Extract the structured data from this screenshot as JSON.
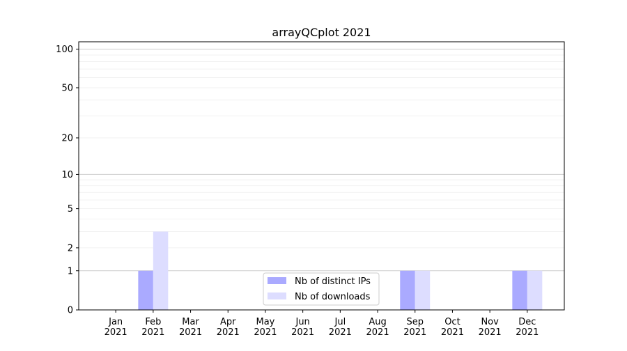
{
  "chart_data": {
    "type": "bar",
    "title": "arrayQCplot 2021",
    "xlabel": "",
    "ylabel": "",
    "y_scale": "log(1+y)",
    "ylim": [
      0,
      114
    ],
    "yticks": [
      0,
      1,
      2,
      5,
      10,
      20,
      50,
      100
    ],
    "ytick_labels": [
      "0",
      "1",
      "2",
      "5",
      "10",
      "20",
      "50",
      "100"
    ],
    "grid": true,
    "legend_position": "bottom-center",
    "categories": [
      "Jan\n2021",
      "Feb\n2021",
      "Mar\n2021",
      "Apr\n2021",
      "May\n2021",
      "Jun\n2021",
      "Jul\n2021",
      "Aug\n2021",
      "Sep\n2021",
      "Oct\n2021",
      "Nov\n2021",
      "Dec\n2021"
    ],
    "series": [
      {
        "name": "Nb of distinct IPs",
        "color": "#aaaaff",
        "values": [
          0,
          1,
          0,
          0,
          0,
          0,
          0,
          0,
          1,
          0,
          0,
          1
        ]
      },
      {
        "name": "Nb of downloads",
        "color": "#ddddff",
        "values": [
          0,
          3,
          0,
          0,
          0,
          0,
          0,
          0,
          1,
          0,
          0,
          1
        ]
      }
    ]
  }
}
